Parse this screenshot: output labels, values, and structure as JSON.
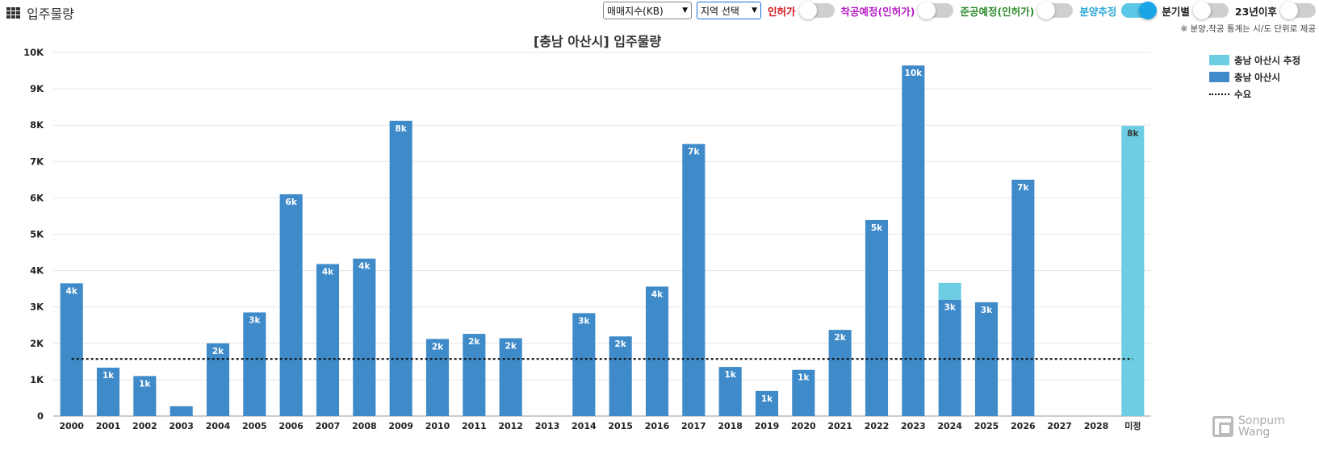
{
  "app": {
    "title": "입주물량"
  },
  "controls": {
    "price_index": "매매지수(KB)",
    "region": "지역 선택",
    "toggles": [
      {
        "label": "인허가",
        "on": false,
        "color": "#d6171b"
      },
      {
        "label": "착공예정(인허가)",
        "on": false,
        "color": "#b51cc4"
      },
      {
        "label": "준공예정(인허가)",
        "on": false,
        "color": "#2e8b2e"
      },
      {
        "label": "분양추정",
        "on": true,
        "color": "#2aa6d6"
      },
      {
        "label": "분기별",
        "on": false,
        "color": "#222222"
      },
      {
        "label": "23년이후",
        "on": false,
        "color": "#222222"
      }
    ]
  },
  "note": "※ 분양,착공 통계는 시/도 단위로 제공",
  "chart_data": {
    "type": "bar",
    "title": "[충남 아산시] 입주물량",
    "categories": [
      "2000",
      "2001",
      "2002",
      "2003",
      "2004",
      "2005",
      "2006",
      "2007",
      "2008",
      "2009",
      "2010",
      "2011",
      "2012",
      "2013",
      "2014",
      "2015",
      "2016",
      "2017",
      "2018",
      "2019",
      "2020",
      "2021",
      "2022",
      "2023",
      "2024",
      "2025",
      "2026",
      "2027",
      "2028",
      "미정"
    ],
    "series": [
      {
        "name": "충남 아산시",
        "color": "#3f8bc9",
        "values": [
          3650,
          1330,
          1100,
          270,
          2000,
          2850,
          6100,
          4180,
          4330,
          8120,
          2120,
          2260,
          2140,
          0,
          2830,
          2190,
          3560,
          7480,
          1350,
          690,
          1270,
          2370,
          5390,
          9640,
          3200,
          3130,
          6500,
          0,
          0,
          0
        ],
        "labels": [
          "4k",
          "1k",
          "1k",
          "",
          "2k",
          "3k",
          "6k",
          "4k",
          "4k",
          "8k",
          "2k",
          "2k",
          "2k",
          "",
          "3k",
          "2k",
          "4k",
          "7k",
          "1k",
          "1k",
          "1k",
          "2k",
          "5k",
          "10k",
          "3k",
          "3k",
          "7k",
          "",
          "",
          ""
        ]
      },
      {
        "name": "충남 아산시 추정",
        "color": "#6ccde3",
        "values": [
          0,
          0,
          0,
          0,
          0,
          0,
          0,
          0,
          0,
          0,
          0,
          0,
          0,
          0,
          0,
          0,
          0,
          0,
          0,
          0,
          0,
          0,
          0,
          0,
          460,
          0,
          0,
          0,
          0,
          7980
        ],
        "labels": [
          "",
          "",
          "",
          "",
          "",
          "",
          "",
          "",
          "",
          "",
          "",
          "",
          "",
          "",
          "",
          "",
          "",
          "",
          "",
          "",
          "",
          "",
          "",
          "",
          "",
          "",
          "",
          "",
          "",
          "8k"
        ]
      }
    ],
    "demand": {
      "name": "수요",
      "value": 1570
    },
    "ylim": [
      0,
      10000
    ],
    "yticks": [
      0,
      1000,
      2000,
      3000,
      4000,
      5000,
      6000,
      7000,
      8000,
      9000,
      10000
    ],
    "ytick_labels": [
      "0",
      "1K",
      "2K",
      "3K",
      "4K",
      "5K",
      "6K",
      "7K",
      "8K",
      "9K",
      "10K"
    ],
    "legend_position": "top-right",
    "grid": true
  },
  "logo": {
    "line1": "Sonpum",
    "line2": "Wang"
  }
}
